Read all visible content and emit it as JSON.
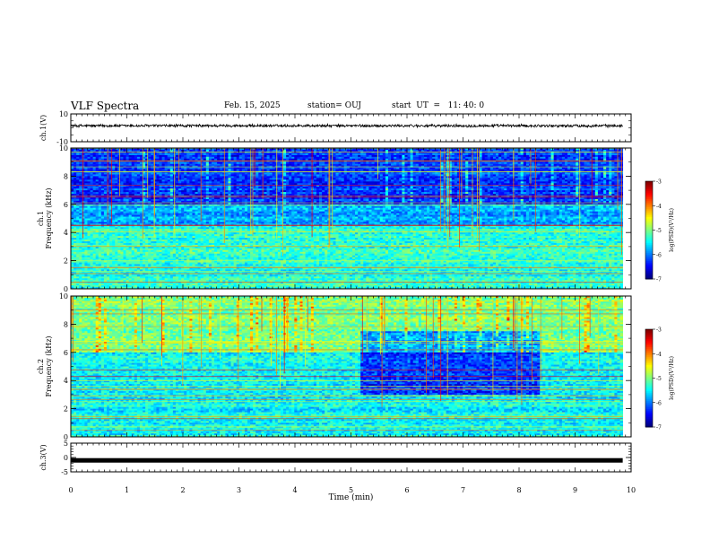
{
  "header": {
    "title": "VLF Spectra",
    "date": "Feb. 15, 2025",
    "station": "station= OUJ",
    "start_ut": "start  UT  =   11: 40: 0"
  },
  "chart_data": [
    {
      "type": "line",
      "panel": "ch1-waveform",
      "ylabel": "ch.1(V)",
      "ylim": [
        -10,
        10
      ],
      "yticks": [
        10,
        -10
      ],
      "xlim": [
        0,
        10
      ],
      "trace_level": 1.5,
      "trace_noise": 1.0,
      "trace_end": 9.85
    },
    {
      "type": "heatmap",
      "panel": "ch1-spectrogram",
      "ylabel_lines": [
        "ch.1",
        "Frequency  (kHz)"
      ],
      "ylim": [
        0,
        10
      ],
      "yticks": [
        0,
        2,
        4,
        6,
        8,
        10
      ],
      "xlim": [
        0,
        10
      ],
      "data_end": 9.85,
      "colorbar": {
        "label": "log(PSD)(V²/Hz)",
        "range": [
          -7,
          -3
        ],
        "ticks": [
          -3,
          -4,
          -5,
          -6,
          -7
        ]
      }
    },
    {
      "type": "heatmap",
      "panel": "ch2-spectrogram",
      "ylabel_lines": [
        "ch.2",
        "Frequency  (kHz)"
      ],
      "ylim": [
        0,
        10
      ],
      "yticks": [
        0,
        2,
        4,
        6,
        8,
        10
      ],
      "xlim": [
        0,
        10
      ],
      "data_end": 9.85,
      "colorbar": {
        "label": "log(PSD)(V²/Hz)",
        "range": [
          -7,
          -3
        ],
        "ticks": [
          -3,
          -4,
          -5,
          -6,
          -7
        ]
      }
    },
    {
      "type": "line",
      "panel": "ch3-waveform",
      "ylabel": "ch.3(V)",
      "ylim": [
        -5,
        5
      ],
      "yticks": [
        5,
        0,
        -5
      ],
      "xlim": [
        0,
        10
      ],
      "trace_level": -1.0,
      "trace_end": 9.85
    }
  ],
  "xaxis": {
    "label": "Time  (min)",
    "ticks": [
      0,
      1,
      2,
      3,
      4,
      5,
      6,
      7,
      8,
      9,
      10
    ],
    "range": [
      0,
      10
    ]
  }
}
